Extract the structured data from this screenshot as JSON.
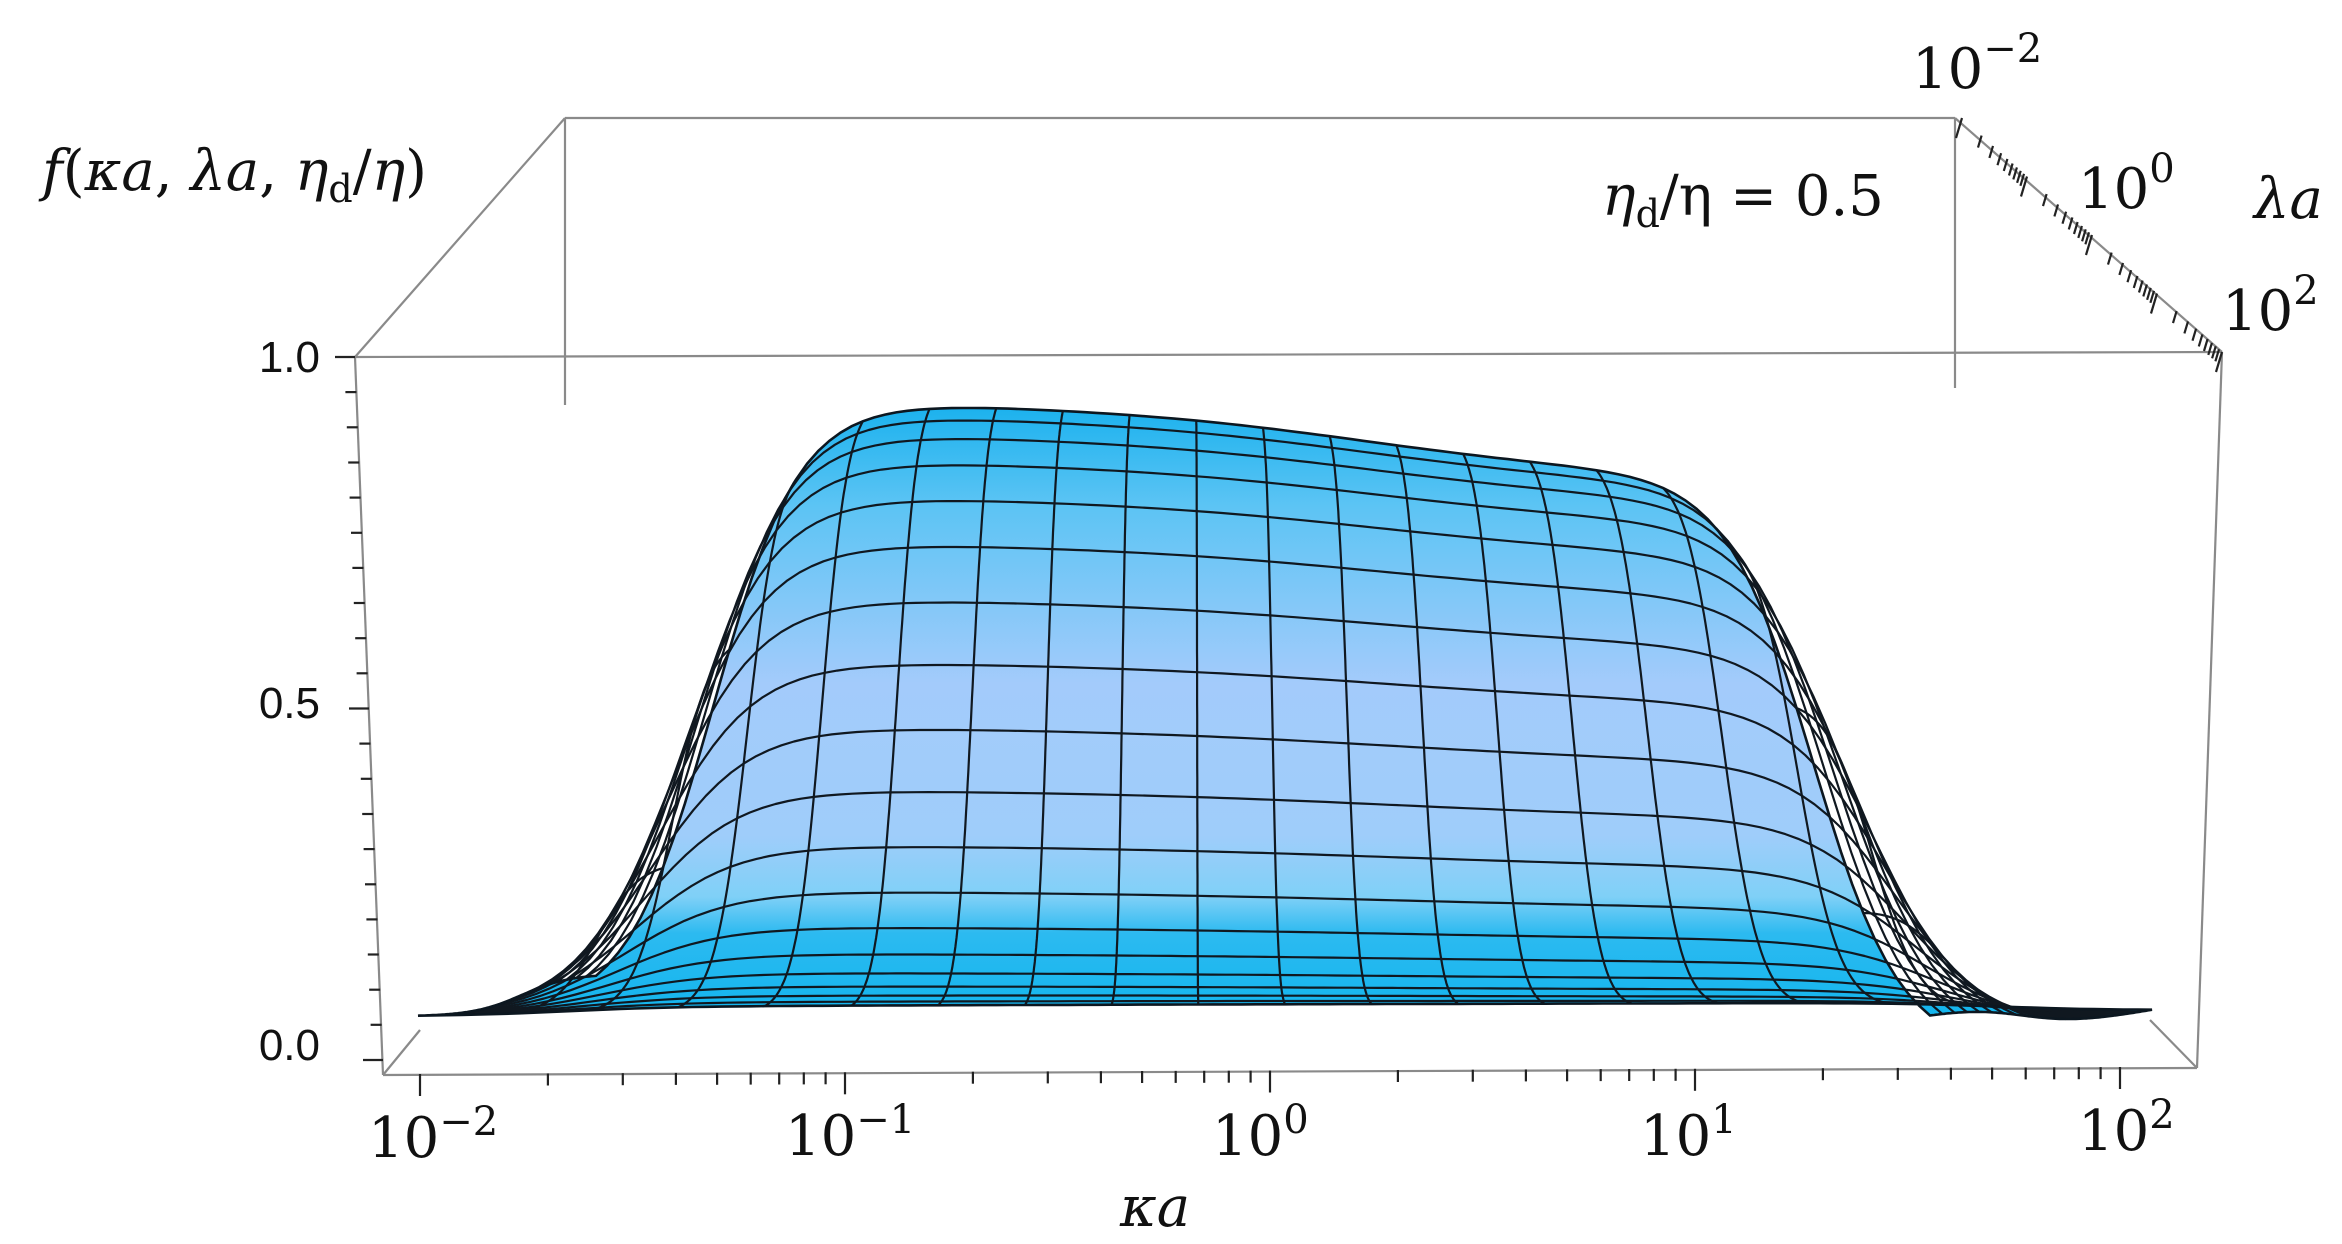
{
  "chart_data": {
    "type": "surface3d",
    "title": "",
    "zlabel": "f(κa, λa, η_d/η)",
    "zlabel_parts": {
      "f": "f",
      "open": "(",
      "ka": "κa",
      "comma1": ", ",
      "la": "λa",
      "comma2": ", ",
      "eta_d": "η",
      "sub_d": "d",
      "slash": "/",
      "eta": "η",
      "close": ")"
    },
    "xlabel": "κa",
    "ylabel": "λa",
    "annotation": {
      "eta_d": "η",
      "sub_d": "d",
      "rest": "/η = 0.5"
    },
    "x_axis": {
      "scale": "log",
      "range": [
        0.01,
        100
      ],
      "ticks": [
        {
          "base": "10",
          "exp": "−2"
        },
        {
          "base": "10",
          "exp": "−1"
        },
        {
          "base": "10",
          "exp": "0"
        },
        {
          "base": "10",
          "exp": "1"
        },
        {
          "base": "10",
          "exp": "2"
        }
      ]
    },
    "y_axis": {
      "scale": "log",
      "range": [
        0.01,
        100
      ],
      "ticks": [
        {
          "base": "10",
          "exp": "−2"
        },
        {
          "base": "10",
          "exp": "0"
        },
        {
          "base": "10",
          "exp": "2"
        }
      ]
    },
    "z_axis": {
      "range": [
        0,
        1
      ],
      "ticks": [
        "0.0",
        "0.5",
        "1.0"
      ]
    },
    "surface": {
      "ka_log10": [
        -2,
        0,
        2
      ],
      "la_log10": [
        -2,
        0,
        2
      ],
      "description_values": {
        "low_la_value": 0.02,
        "high_la_value_small_ka": 1.0,
        "high_la_value_large_ka": 0.92
      }
    },
    "colors": {
      "surface_light": "#a6cdfa",
      "surface_mid": "#52c1f4",
      "surface_dark": "#0fb4ee",
      "mesh": "#101820",
      "box": "#8a8a8a"
    }
  }
}
